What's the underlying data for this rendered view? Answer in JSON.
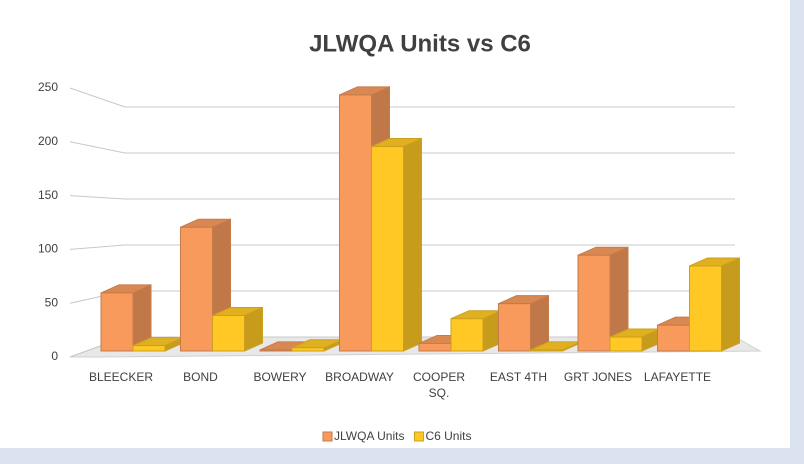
{
  "chart_data": {
    "type": "bar3d",
    "title": "JLWQA Units vs C6",
    "categories": [
      "BLEECKER",
      "BOND",
      "BOWERY",
      "BROADWAY",
      "COOPER SQ.",
      "EAST 4TH",
      "GRT JONES",
      "LAFAYETTE"
    ],
    "series": [
      {
        "name": "JLWQA Units",
        "color": "#f79a5c",
        "values": [
          54,
          115,
          1,
          238,
          7,
          44,
          89,
          24
        ]
      },
      {
        "name": "C6 Units",
        "color": "#ffc824",
        "values": [
          5,
          33,
          3,
          190,
          30,
          1,
          13,
          79
        ]
      }
    ],
    "ylim": [
      0,
      250
    ],
    "yticks": [
      0,
      50,
      100,
      150,
      200,
      250
    ],
    "grid": true,
    "legend": "bottom"
  }
}
